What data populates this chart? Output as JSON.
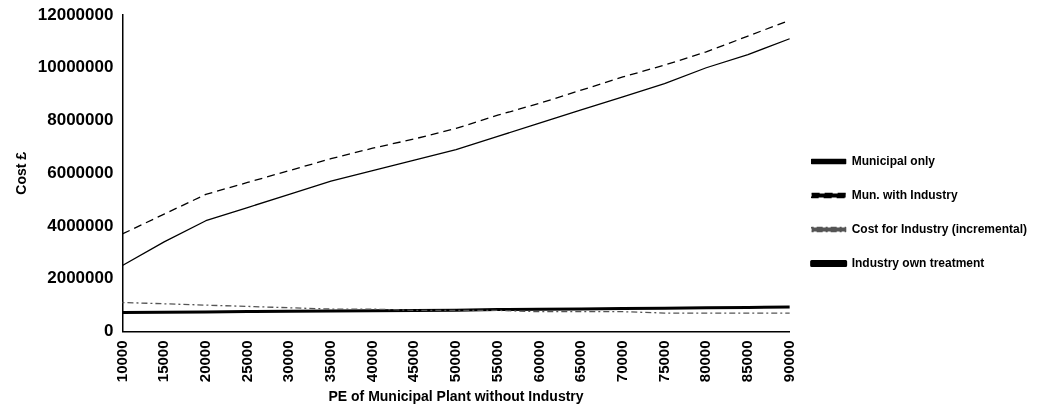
{
  "chart_data": {
    "type": "line",
    "xlabel": "PE of Municipal Plant without Industry",
    "ylabel": "Cost £",
    "categories": [
      "10000",
      "15000",
      "20000",
      "25000",
      "30000",
      "35000",
      "40000",
      "45000",
      "50000",
      "55000",
      "60000",
      "65000",
      "70000",
      "75000",
      "80000",
      "85000",
      "90000"
    ],
    "series": [
      {
        "name": "Municipal only",
        "color": "#000000",
        "line_style": "solid",
        "values": [
          2500000,
          3400000,
          4200000,
          4700000,
          5200000,
          5700000,
          6100000,
          6500000,
          6900000,
          7400000,
          7900000,
          8400000,
          8900000,
          9400000,
          10000000,
          10500000,
          11100000
        ]
      },
      {
        "name": "Mun. with Industry",
        "color": "#000000",
        "line_style": "dashed",
        "values": [
          3700000,
          4450000,
          5200000,
          5650000,
          6100000,
          6550000,
          6950000,
          7300000,
          7700000,
          8200000,
          8650000,
          9150000,
          9650000,
          10100000,
          10600000,
          11200000,
          11800000
        ]
      },
      {
        "name": "Cost for Industry (incremental)",
        "color": "#555555",
        "line_style": "dotted",
        "values": [
          1100000,
          1050000,
          1000000,
          950000,
          900000,
          850000,
          850000,
          800000,
          800000,
          800000,
          750000,
          750000,
          750000,
          700000,
          700000,
          700000,
          700000
        ]
      },
      {
        "name": "Industry own treatment",
        "color": "#000000",
        "line_style": "solid",
        "values": [
          720000,
          730000,
          740000,
          760000,
          770000,
          780000,
          790000,
          800000,
          810000,
          830000,
          840000,
          850000,
          870000,
          880000,
          900000,
          910000,
          930000
        ]
      }
    ],
    "ylim": [
      0,
      12000000
    ],
    "yticks": [
      0,
      2000000,
      4000000,
      6000000,
      8000000,
      10000000,
      12000000
    ],
    "grid": false,
    "legend": "right",
    "marker": "none"
  }
}
